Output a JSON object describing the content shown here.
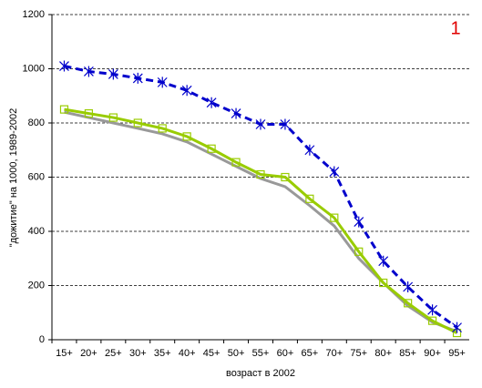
{
  "chart_data": {
    "type": "line",
    "annotation": "1",
    "x_label": "возраст в 2002",
    "y_label": "\"дожитие\" на 1000, 1989-2002",
    "categories": [
      "15+",
      "20+",
      "25+",
      "30+",
      "35+",
      "40+",
      "45+",
      "50+",
      "55+",
      "60+",
      "65+",
      "70+",
      "75+",
      "80+",
      "85+",
      "90+",
      "95+"
    ],
    "series": [
      {
        "color": "#999999",
        "marker": "none",
        "dashed": false,
        "values": [
          840,
          820,
          800,
          780,
          760,
          730,
          685,
          640,
          595,
          565,
          495,
          420,
          300,
          210,
          125,
          65,
          30
        ]
      },
      {
        "color": "#99cc00",
        "marker": "square",
        "dashed": false,
        "values": [
          850,
          835,
          820,
          800,
          780,
          750,
          705,
          655,
          610,
          600,
          520,
          450,
          325,
          210,
          135,
          70,
          25
        ]
      },
      {
        "color": "#0000cc",
        "marker": "asterisk",
        "dashed": true,
        "values": [
          1010,
          990,
          980,
          965,
          950,
          920,
          875,
          835,
          795,
          795,
          700,
          620,
          435,
          290,
          195,
          110,
          45
        ]
      }
    ],
    "ylim": [
      0,
      1200
    ],
    "yticks": [
      0,
      200,
      400,
      600,
      800,
      1000,
      1200
    ],
    "grid": true
  }
}
